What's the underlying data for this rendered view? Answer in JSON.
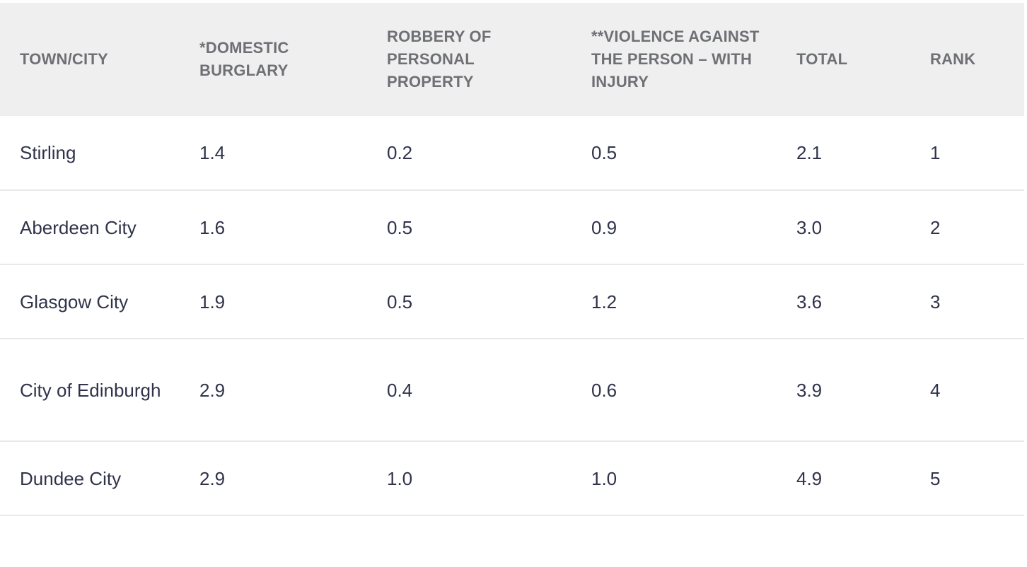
{
  "table": {
    "headers": [
      "TOWN/CITY",
      "*DOMESTIC BURGLARY",
      "ROBBERY OF PERSONAL PROPERTY",
      "**VIOLENCE AGAINST THE PERSON – WITH INJURY",
      "TOTAL",
      "RANK"
    ],
    "rows": [
      [
        "Stirling",
        "1.4",
        "0.2",
        "0.5",
        "2.1",
        "1"
      ],
      [
        "Aberdeen City",
        "1.6",
        "0.5",
        "0.9",
        "3.0",
        "2"
      ],
      [
        "Glasgow City",
        "1.9",
        "0.5",
        "1.2",
        "3.6",
        "3"
      ],
      [
        "City of Edinburgh",
        "2.9",
        "0.4",
        "0.6",
        "3.9",
        "4"
      ],
      [
        "Dundee City",
        "2.9",
        "1.0",
        "1.0",
        "4.9",
        "5"
      ]
    ]
  }
}
